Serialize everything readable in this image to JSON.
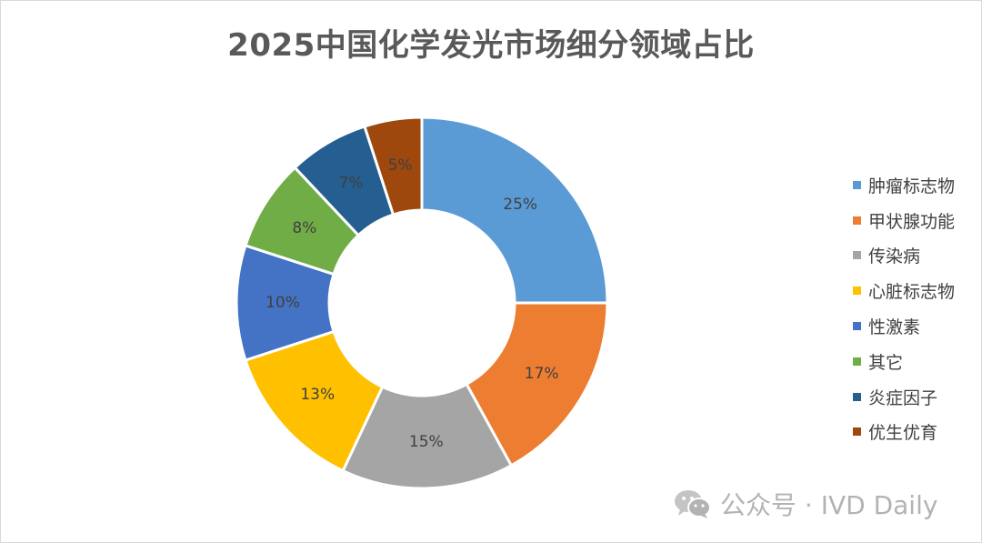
{
  "chart_data": {
    "type": "pie",
    "title": "2025中国化学发光市场细分领域占比",
    "categories": [
      "肿瘤标志物",
      "甲状腺功能",
      "传染病",
      "心脏标志物",
      "性激素",
      "其它",
      "炎症因子",
      "优生优育"
    ],
    "values": [
      25,
      17,
      15,
      13,
      10,
      8,
      7,
      5
    ],
    "data_labels": [
      "25%",
      "17%",
      "15%",
      "13%",
      "10%",
      "8%",
      "7%",
      "5%"
    ],
    "colors": [
      "#5b9bd5",
      "#ed7d31",
      "#a5a5a5",
      "#ffc000",
      "#4472c4",
      "#70ad47",
      "#255e91",
      "#9e480e"
    ],
    "donut": true,
    "legend_position": "right"
  },
  "watermark": {
    "text": "公众号 · IVD Daily",
    "icon": "wechat-icon"
  }
}
